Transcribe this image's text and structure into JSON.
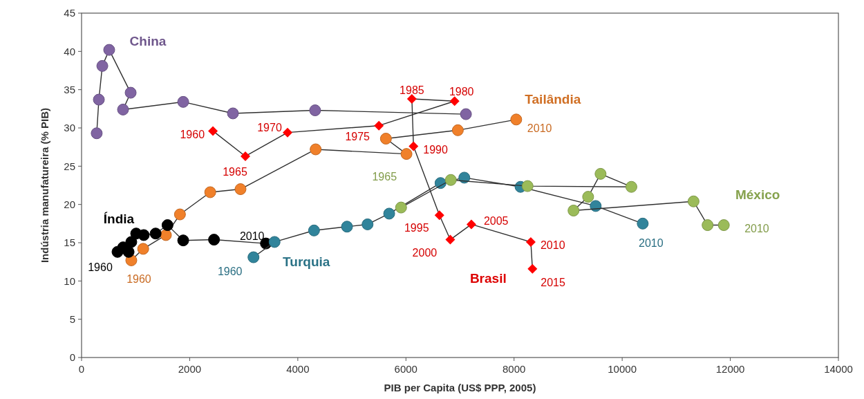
{
  "chart_data": {
    "type": "line",
    "xlabel": "PIB per Capita (US$ PPP, 2005)",
    "ylabel": "Indústria manufatureira (% PIB)",
    "xlim": [
      0,
      14000
    ],
    "xticks": [
      0,
      2000,
      4000,
      6000,
      8000,
      10000,
      12000,
      14000
    ],
    "ylim": [
      0,
      45
    ],
    "yticks": [
      0,
      5,
      10,
      15,
      20,
      25,
      30,
      35,
      40,
      45
    ],
    "grid": false,
    "series": [
      {
        "name": "China",
        "color": "#8064a2",
        "marker": "circle",
        "x": [
          280,
          320,
          384,
          511,
          908,
          767,
          1880,
          2800,
          4320,
          7110
        ],
        "values": [
          29.3,
          33.7,
          38.1,
          40.2,
          34.6,
          32.4,
          33.4,
          31.9,
          32.3,
          31.8
        ]
      },
      {
        "name": "Tailândia",
        "color": "#f0802a",
        "marker": "circle",
        "x": [
          920,
          1140,
          1560,
          1820,
          2380,
          2940,
          4330,
          6010,
          5630,
          6960,
          8040
        ],
        "values": [
          12.7,
          14.2,
          16.0,
          18.7,
          21.6,
          22.0,
          27.2,
          26.6,
          28.6,
          29.7,
          31.1
        ]
      },
      {
        "name": "Índia",
        "color": "#000000",
        "marker": "circle",
        "x": [
          665,
          770,
          870,
          920,
          1010,
          1150,
          1370,
          1590,
          1880,
          2450,
          3410
        ],
        "values": [
          13.8,
          14.4,
          13.8,
          15.1,
          16.2,
          16.0,
          16.2,
          17.3,
          15.3,
          15.4,
          14.9
        ]
      },
      {
        "name": "Turquia",
        "color": "#31849b",
        "marker": "circle",
        "x": [
          3180,
          3570,
          4300,
          4910,
          5290,
          5690,
          6640,
          7080,
          8120,
          9510,
          10380
        ],
        "values": [
          13.1,
          15.1,
          16.6,
          17.1,
          17.4,
          18.8,
          22.8,
          23.5,
          22.3,
          19.8,
          17.5
        ]
      },
      {
        "name": "México",
        "color": "#9bbb59",
        "marker": "circle",
        "x": [
          5910,
          6830,
          8250,
          10170,
          9600,
          9370,
          9100,
          11320,
          11580,
          11880
        ],
        "values": [
          19.6,
          23.2,
          22.4,
          22.3,
          24.0,
          21.0,
          19.2,
          20.4,
          17.3,
          17.3
        ]
      },
      {
        "name": "Brasil",
        "color": "#ff0000",
        "marker": "diamond",
        "x": [
          2430,
          3030,
          3810,
          5500,
          6900,
          6110,
          6140,
          6620,
          6820,
          7210,
          8310,
          8340
        ],
        "values": [
          29.6,
          26.3,
          29.4,
          30.3,
          33.5,
          33.8,
          27.6,
          18.6,
          15.4,
          17.4,
          15.1,
          11.6
        ]
      }
    ],
    "annotations": [
      {
        "text": "1960",
        "x": 2430,
        "y": 29.6
      },
      {
        "text": "1965",
        "x": 3030,
        "y": 26.3
      },
      {
        "text": "1970",
        "x": 3810,
        "y": 29.4
      },
      {
        "text": "1975",
        "x": 5500,
        "y": 30.3
      },
      {
        "text": "1980",
        "x": 6900,
        "y": 33.5
      },
      {
        "text": "1985",
        "x": 6110,
        "y": 33.8
      },
      {
        "text": "1990",
        "x": 6140,
        "y": 27.6
      },
      {
        "text": "1995",
        "x": 6620,
        "y": 18.6
      },
      {
        "text": "2000",
        "x": 6820,
        "y": 15.4
      },
      {
        "text": "2005",
        "x": 7210,
        "y": 17.4
      },
      {
        "text": "2010",
        "x": 8310,
        "y": 15.1
      },
      {
        "text": "2015",
        "x": 8340,
        "y": 11.6
      },
      {
        "text": "1960",
        "x": 920,
        "y": 12.7
      },
      {
        "text": "2010",
        "x": 8040,
        "y": 31.1
      },
      {
        "text": "1960",
        "x": 665,
        "y": 13.8
      },
      {
        "text": "2010",
        "x": 3410,
        "y": 14.9
      },
      {
        "text": "1960",
        "x": 3180,
        "y": 13.1
      },
      {
        "text": "2010",
        "x": 10380,
        "y": 17.5
      },
      {
        "text": "1965",
        "x": 5910,
        "y": 19.6
      },
      {
        "text": "2010",
        "x": 11880,
        "y": 17.3
      }
    ]
  }
}
